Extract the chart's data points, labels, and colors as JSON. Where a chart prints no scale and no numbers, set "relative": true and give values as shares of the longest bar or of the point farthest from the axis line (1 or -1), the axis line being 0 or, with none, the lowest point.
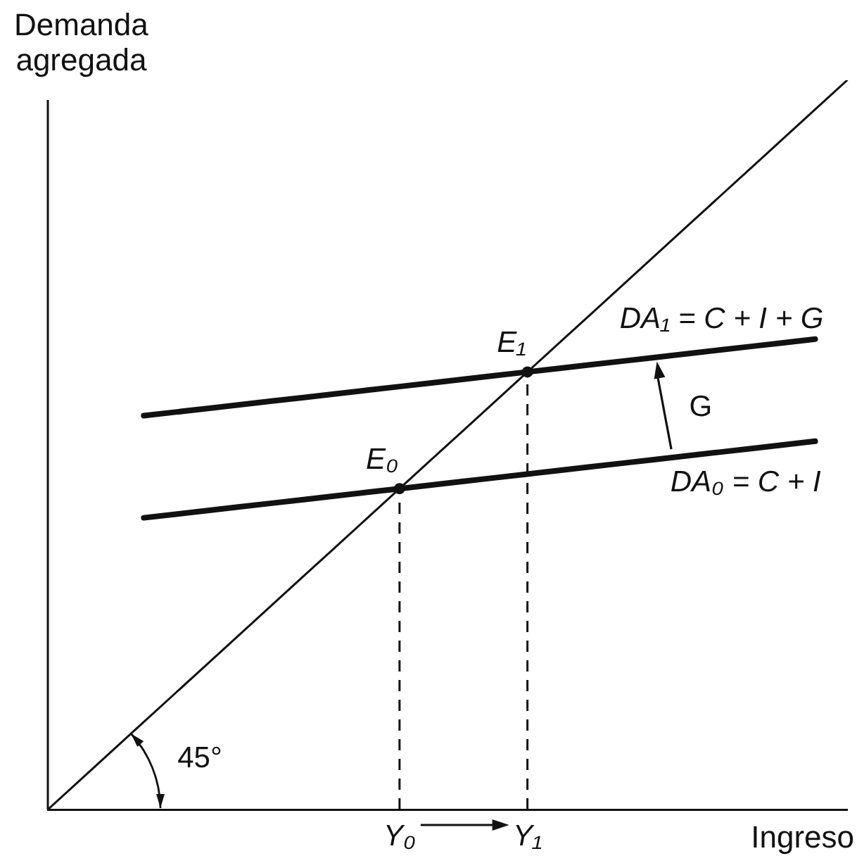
{
  "chart_data": {
    "type": "line",
    "xlabel": "Ingreso",
    "ylabel": "Demanda agregada",
    "relative": true,
    "legend": false,
    "grid": false,
    "categories": [
      null,
      null,
      null,
      null,
      null,
      null,
      null,
      null,
      null,
      null,
      null,
      "Y₀",
      null,
      null,
      null,
      "Y₁",
      null,
      null,
      null,
      null,
      null,
      null,
      null,
      null,
      null,
      null
    ],
    "series": [
      {
        "type": "line",
        "color": "#111111",
        "values": [
          0,
          0.04,
          0.08,
          0.12,
          0.16,
          0.2,
          0.24,
          0.28,
          0.32,
          0.36,
          0.4,
          0.44,
          0.48,
          0.52,
          0.56,
          0.6,
          0.64,
          0.68,
          0.72,
          0.76,
          0.8,
          0.84,
          0.88,
          0.92,
          0.96,
          1
        ]
      },
      {
        "name": "DA₀ = C + I",
        "type": "line",
        "color": "#111111",
        "values": [
          null,
          null,
          null,
          0.4,
          0.405,
          0.41,
          0.415,
          0.42,
          0.425,
          0.43,
          0.435,
          0.44,
          0.445,
          0.45,
          0.455,
          0.46,
          0.465,
          0.47,
          0.475,
          0.48,
          0.485,
          0.49,
          0.495,
          0.5,
          0.505,
          null
        ]
      },
      {
        "name": "DA₁ = C + I + G",
        "type": "line",
        "color": "#111111",
        "values": [
          null,
          null,
          null,
          0.54,
          0.545,
          0.55,
          0.555,
          0.56,
          0.565,
          0.57,
          0.575,
          0.58,
          0.585,
          0.59,
          0.595,
          0.6,
          0.605,
          0.61,
          0.615,
          0.62,
          0.625,
          0.63,
          0.635,
          0.64,
          0.645,
          null
        ]
      },
      {
        "type": "lollipop",
        "color": "#111111",
        "marker": "circle",
        "line_style": "dashed",
        "values": [
          null,
          null,
          null,
          null,
          null,
          null,
          null,
          null,
          null,
          null,
          null,
          0.44,
          null,
          null,
          null,
          0.6,
          null,
          null,
          null,
          null,
          null,
          null,
          null,
          null,
          null,
          null
        ]
      }
    ],
    "annotations": [
      "45°",
      "G",
      {
        "text": "E₀",
        "x": "Y₀",
        "y": 0.44
      },
      {
        "text": "E₁",
        "x": "Y₁",
        "y": 0.6
      }
    ]
  }
}
